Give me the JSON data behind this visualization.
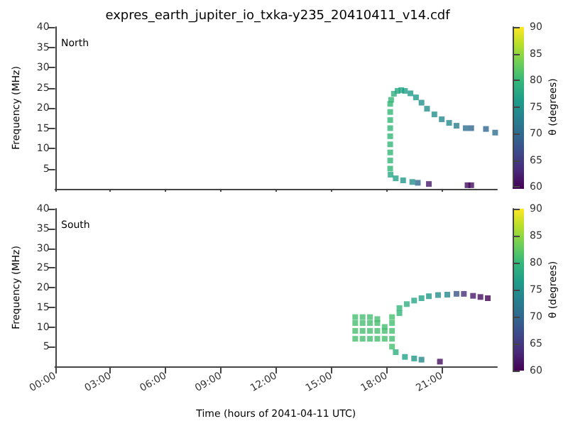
{
  "chart_data": [
    {
      "type": "scatter",
      "title": "expres_earth_jupiter_io_txka-y235_20410411_v14.cdf",
      "ylabel": "Frequency (MHz)",
      "clabel": "θ (degrees)",
      "annotations": [
        "North"
      ],
      "marker": "square",
      "tick_labels": "y",
      "xlim": [
        0,
        24
      ],
      "xticks": [
        {
          "value": 0,
          "label": null
        },
        {
          "value": 3,
          "label": null
        },
        {
          "value": 6,
          "label": null
        },
        {
          "value": 9,
          "label": null
        },
        {
          "value": 12,
          "label": null
        },
        {
          "value": 15,
          "label": null
        },
        {
          "value": 18,
          "label": null
        },
        {
          "value": 21,
          "label": null
        }
      ],
      "ylim": [
        0,
        40
      ],
      "yticks": [
        5,
        10,
        15,
        20,
        25,
        30,
        35,
        40
      ],
      "clim": [
        60,
        90
      ],
      "cticks": [
        60,
        65,
        70,
        75,
        80,
        85,
        90
      ],
      "x": [
        18.2,
        18.2,
        18.2,
        18.2,
        18.2,
        18.2,
        18.2,
        18.2,
        18.2,
        18.25,
        18.4,
        18.6,
        18.8,
        19.0,
        19.3,
        19.6,
        19.9,
        20.2,
        20.6,
        21.0,
        21.4,
        21.8,
        22.3,
        22.6,
        23.4,
        23.9,
        18.22,
        18.5,
        18.9,
        19.4,
        19.7,
        20.3,
        22.4,
        22.6
      ],
      "values": [
        5,
        7,
        9,
        11,
        13,
        15,
        17,
        19,
        21,
        22,
        23.5,
        24.2,
        24.4,
        24.2,
        23.6,
        22.6,
        21.3,
        19.8,
        18.4,
        17.2,
        16.3,
        15.6,
        15.0,
        15.0,
        14.8,
        13.9,
        3.5,
        2.6,
        2.1,
        1.7,
        1.5,
        1.2,
        0.9,
        0.9
      ],
      "cvalues": [
        80,
        80,
        80,
        80,
        80,
        80,
        80,
        80,
        80,
        80,
        79,
        78,
        78,
        77,
        76,
        76,
        75,
        75,
        75,
        74,
        74,
        73,
        71,
        70,
        70,
        71,
        78,
        77,
        76,
        75,
        70,
        62,
        61,
        61
      ]
    },
    {
      "type": "scatter",
      "ylabel": "Frequency (MHz)",
      "xlabel": "Time (hours of 2041-04-11 UTC)",
      "clabel": "θ (degrees)",
      "annotations": [
        "South"
      ],
      "marker": "square",
      "xlim": [
        0,
        24
      ],
      "xticks": [
        {
          "value": 0,
          "label": "00:00"
        },
        {
          "value": 3,
          "label": "03:00"
        },
        {
          "value": 6,
          "label": "06:00"
        },
        {
          "value": 9,
          "label": "09:00"
        },
        {
          "value": 12,
          "label": "12:00"
        },
        {
          "value": 15,
          "label": "15:00"
        },
        {
          "value": 18,
          "label": "18:00"
        },
        {
          "value": 21,
          "label": "21:00"
        }
      ],
      "ylim": [
        0,
        40
      ],
      "yticks": [
        5,
        10,
        15,
        20,
        25,
        30,
        35,
        40
      ],
      "clim": [
        60,
        90
      ],
      "cticks": [
        60,
        65,
        70,
        75,
        80,
        85,
        90
      ],
      "x": [
        16.3,
        16.3,
        16.3,
        16.3,
        16.7,
        16.7,
        16.7,
        16.7,
        17.1,
        17.1,
        17.1,
        17.1,
        17.5,
        17.5,
        17.5,
        17.5,
        17.9,
        17.9,
        17.9,
        18.3,
        18.3,
        18.3,
        18.3,
        18.3,
        18.7,
        18.7,
        19.1,
        19.5,
        19.9,
        20.3,
        20.8,
        21.3,
        21.8,
        22.2,
        22.7,
        23.1,
        23.5,
        18.5,
        19.0,
        19.5,
        19.9,
        20.9
      ],
      "values": [
        7,
        9,
        11,
        12.5,
        7,
        9,
        11,
        12.5,
        7,
        9,
        11,
        12.5,
        7,
        9,
        11,
        12,
        7,
        9,
        10,
        5,
        7,
        9,
        11,
        12.5,
        13.5,
        14.8,
        15.8,
        16.7,
        17.3,
        17.8,
        18.1,
        18.2,
        18.4,
        18.4,
        17.9,
        17.6,
        17.3,
        3.6,
        2.4,
        2.0,
        1.7,
        1.2
      ],
      "cvalues": [
        81,
        81,
        81,
        81,
        81,
        81,
        81,
        81,
        81,
        81,
        81,
        81,
        81,
        81,
        81,
        81,
        81,
        81,
        81,
        81,
        81,
        81,
        81,
        81,
        80,
        80,
        79,
        78,
        77,
        76,
        75,
        74,
        68,
        64,
        62,
        61,
        60,
        79,
        77,
        76,
        74,
        61
      ]
    }
  ]
}
